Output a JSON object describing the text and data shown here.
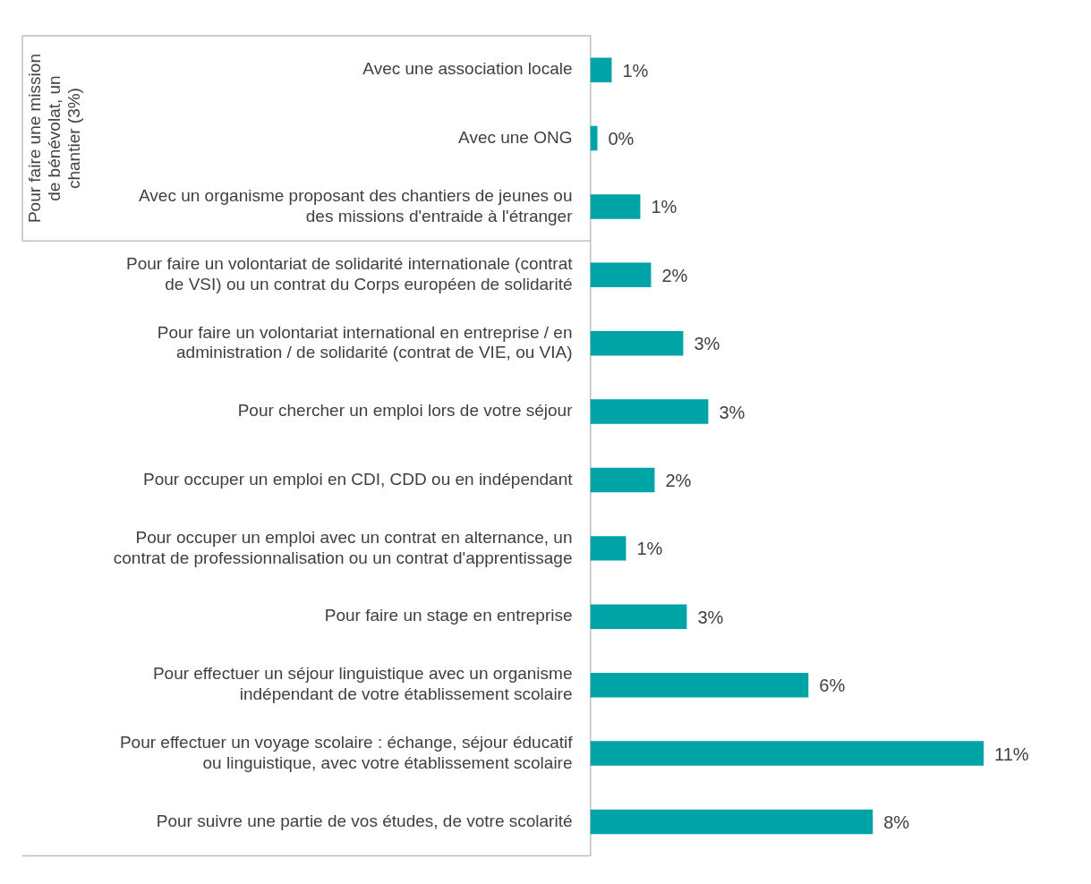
{
  "chart_data": {
    "type": "bar",
    "orientation": "horizontal",
    "categories": [
      "Avec une association locale",
      "Avec une ONG",
      "Avec un organisme proposant des chantiers de jeunes ou des missions d'entraide à l'étranger",
      "Pour faire un volontariat de solidarité internationale (contrat de VSI) ou un contrat du Corps européen de solidarité",
      "Pour faire un volontariat international en entreprise / en administration / de solidarité (contrat de VIE, ou VIA)",
      "Pour chercher un emploi lors de votre séjour",
      "Pour occuper un emploi en CDI, CDD ou en indépendant",
      "Pour occuper un emploi avec un contrat en alternance, un contrat de professionnalisation ou un contrat d'apprentissage",
      "Pour faire un stage en entreprise",
      "Pour effectuer un séjour linguistique avec un organisme indépendant de votre établissement scolaire",
      "Pour effectuer un voyage scolaire : échange, séjour éducatif ou linguistique, avec votre établissement scolaire",
      "Pour suivre une partie de vos études, de votre scolarité"
    ],
    "values": [
      0.6,
      0.2,
      1.4,
      1.7,
      2.6,
      3.3,
      1.8,
      1.0,
      2.7,
      6.1,
      11.0,
      7.9
    ],
    "value_labels": [
      "1%",
      "0%",
      "1%",
      "2%",
      "3%",
      "3%",
      "2%",
      "1%",
      "3%",
      "6%",
      "11%",
      "8%"
    ],
    "color": "#00a3a6",
    "annotations": [
      "Pour faire une mission de bénévolat, un chantier (3%)"
    ],
    "grid": false,
    "legend": false
  }
}
